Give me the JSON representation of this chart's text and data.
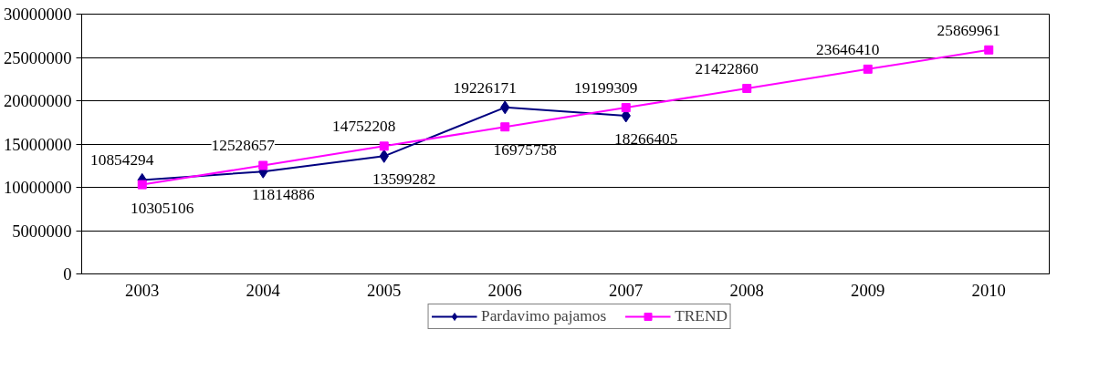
{
  "chart_data": {
    "type": "line",
    "categories": [
      "2003",
      "2004",
      "2005",
      "2006",
      "2007",
      "2008",
      "2009",
      "2010"
    ],
    "series": [
      {
        "name": "Pardavimo pajamos",
        "color": "#000080",
        "marker": "diamond",
        "values": [
          10854294,
          11814886,
          13599282,
          19226171,
          18266405,
          null,
          null,
          null
        ]
      },
      {
        "name": "TREND",
        "color": "#ff00ff",
        "marker": "square",
        "values": [
          10305106,
          12528657,
          14752208,
          16975758,
          19199309,
          21422860,
          23646410,
          25869961
        ]
      }
    ],
    "ylim": [
      0,
      30000000
    ],
    "yticks": [
      0,
      5000000,
      10000000,
      15000000,
      20000000,
      25000000,
      30000000
    ],
    "grid": "y",
    "legend": "bottom",
    "data_labels": true,
    "line_style": "solid"
  }
}
